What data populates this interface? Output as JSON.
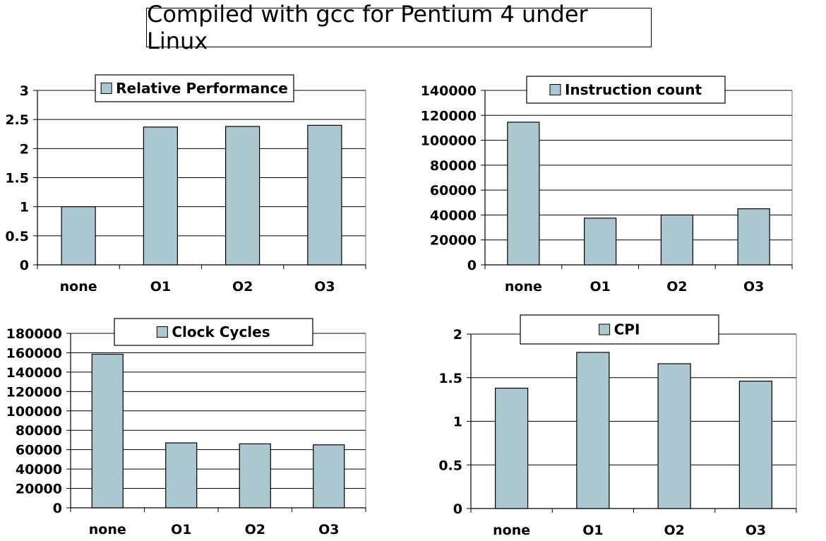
{
  "page": {
    "title": "Compiled with gcc for Pentium 4 under Linux"
  },
  "chart_data": [
    {
      "type": "bar",
      "categories": [
        "none",
        "O1",
        "O2",
        "O3"
      ],
      "series": [
        {
          "name": "Relative Performance",
          "values": [
            1.0,
            2.37,
            2.38,
            2.4
          ]
        }
      ],
      "ylim": [
        0,
        3
      ],
      "yticks": [
        0,
        0.5,
        1,
        1.5,
        2,
        2.5,
        3
      ],
      "ytick_labels": [
        "0",
        "0.5",
        "1",
        "1.5",
        "2",
        "2.5",
        "3"
      ],
      "grid": true,
      "legend": "top-center",
      "bar_color": "#abc8d1"
    },
    {
      "type": "bar",
      "categories": [
        "none",
        "O1",
        "O2",
        "O3"
      ],
      "series": [
        {
          "name": "Instruction count",
          "values": [
            114500,
            37500,
            40000,
            45000
          ]
        }
      ],
      "ylim": [
        0,
        140000
      ],
      "yticks": [
        0,
        20000,
        40000,
        60000,
        80000,
        100000,
        120000,
        140000
      ],
      "ytick_labels": [
        "0",
        "20000",
        "40000",
        "60000",
        "80000",
        "100000",
        "120000",
        "140000"
      ],
      "grid": true,
      "legend": "top-center",
      "bar_color": "#abc8d1"
    },
    {
      "type": "bar",
      "categories": [
        "none",
        "O1",
        "O2",
        "O3"
      ],
      "series": [
        {
          "name": "Clock Cycles",
          "values": [
            158500,
            67000,
            66000,
            65000
          ]
        }
      ],
      "ylim": [
        0,
        180000
      ],
      "yticks": [
        0,
        20000,
        40000,
        60000,
        80000,
        100000,
        120000,
        140000,
        160000,
        180000
      ],
      "ytick_labels": [
        "0",
        "20000",
        "40000",
        "60000",
        "80000",
        "100000",
        "120000",
        "140000",
        "160000",
        "180000"
      ],
      "grid": true,
      "legend": "top-center",
      "bar_color": "#abc8d1"
    },
    {
      "type": "bar",
      "categories": [
        "none",
        "O1",
        "O2",
        "O3"
      ],
      "series": [
        {
          "name": "CPI",
          "values": [
            1.38,
            1.79,
            1.66,
            1.46
          ]
        }
      ],
      "ylim": [
        0,
        2
      ],
      "yticks": [
        0,
        0.5,
        1,
        1.5,
        2
      ],
      "ytick_labels": [
        "0",
        "0.5",
        "1",
        "1.5",
        "2"
      ],
      "grid": true,
      "legend": "top-center",
      "bar_color": "#abc8d1"
    }
  ]
}
